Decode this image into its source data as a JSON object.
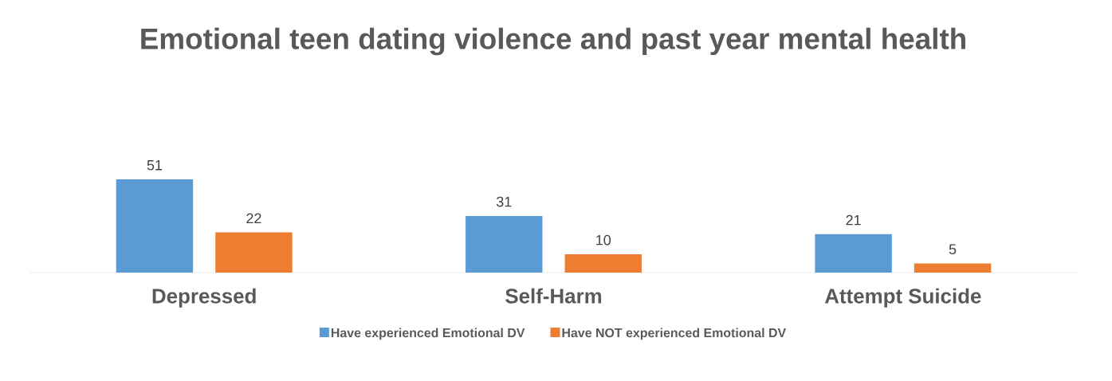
{
  "chart_data": {
    "type": "bar",
    "title": "Emotional teen dating violence and past year mental health",
    "categories": [
      "Depressed",
      "Self-Harm",
      "Attempt Suicide"
    ],
    "series": [
      {
        "name": "Have experienced Emotional DV",
        "color": "#5b9bd5",
        "values": [
          51,
          31,
          21
        ]
      },
      {
        "name": "Have NOT experienced Emotional DV",
        "color": "#ed7d31",
        "values": [
          22,
          10,
          5
        ]
      }
    ],
    "data_labels": true,
    "legend": "bottom"
  }
}
